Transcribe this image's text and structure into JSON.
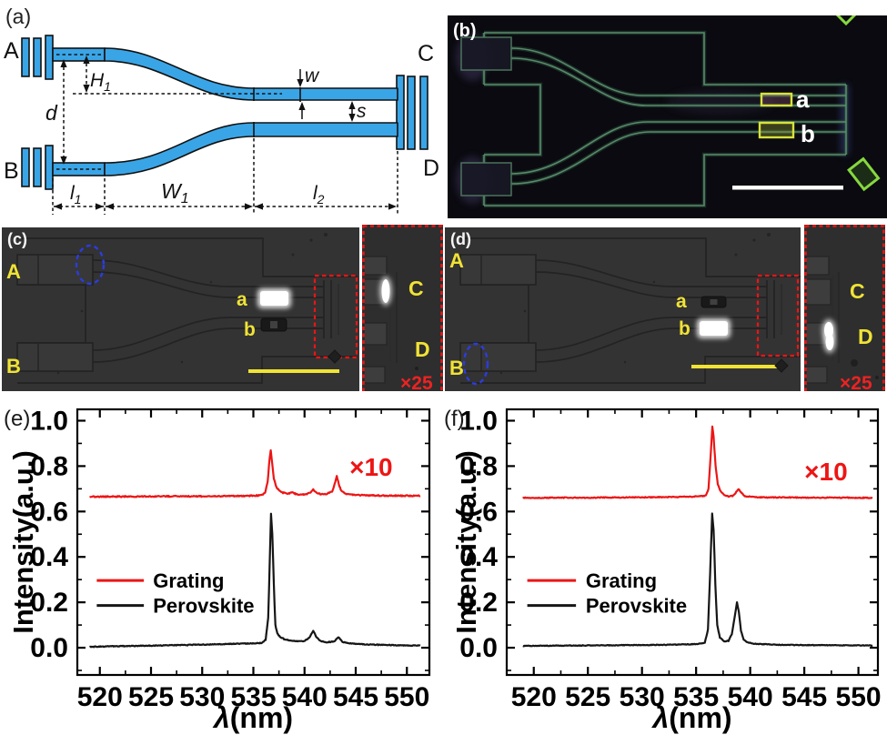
{
  "colors": {
    "waveguide_blue": "#3aa5e6",
    "label_yellow": "#f0e335",
    "annotation_red": "#ed1414",
    "ellipse_blue": "#2b3ce0",
    "fluorescence_green": "#5d8f6f",
    "grating_red": "#ed1515",
    "perovskite_black": "#161616"
  },
  "panels": {
    "a": {
      "label": "(a)",
      "ports": {
        "A": "A",
        "B": "B",
        "C": "C",
        "D": "D"
      },
      "dims": {
        "H1": {
          "base": "H",
          "sub": "1"
        },
        "d": "d",
        "w": "w",
        "s": "s",
        "l1": {
          "base": "l",
          "sub": "1"
        },
        "W1": {
          "base": "W",
          "sub": "1"
        },
        "l2": {
          "base": "l",
          "sub": "2"
        }
      }
    },
    "b": {
      "label": "(b)",
      "marker_a": "a",
      "marker_b": "b"
    },
    "c": {
      "label": "(c)",
      "port_a": "A",
      "port_b": "B",
      "marker_a": "a",
      "marker_b": "b",
      "inset": {
        "label_c": "C",
        "label_d": "D",
        "magnification": "×25"
      }
    },
    "d": {
      "label": "(d)",
      "port_a": "A",
      "port_b": "B",
      "marker_a": "a",
      "marker_b": "b",
      "inset": {
        "label_c": "C",
        "label_d": "D",
        "magnification": "×25"
      }
    }
  },
  "chart_data": [
    {
      "id": "e",
      "panel_label": "(e)",
      "type": "line",
      "xlabel_lambda": "λ",
      "xlabel_units": "(nm)",
      "ylabel": "Intensity(a.u.)",
      "xlim": [
        517.8,
        552.2
      ],
      "ylim": [
        -0.12,
        1.05
      ],
      "xticks": [
        520,
        525,
        530,
        535,
        540,
        545,
        550
      ],
      "yticks": [
        "0.0",
        "0.2",
        "0.4",
        "0.6",
        "0.8",
        "1.0"
      ],
      "x_minor_step": 2.5,
      "y_minor_step": 0.1,
      "annotation": {
        "text": "×10",
        "x": 546.5,
        "y": 0.758,
        "color": "#ed1515"
      },
      "legend_anchor": {
        "x0": 519.7,
        "x1": 524.3,
        "tx": 525.2,
        "y": [
          0.296,
          0.186
        ]
      },
      "series": [
        {
          "name": "Grating",
          "color": "#ed1515",
          "noise": 0.005,
          "points": [
            [
              519,
              0.665
            ],
            [
              521,
              0.666
            ],
            [
              524,
              0.666
            ],
            [
              527,
              0.667
            ],
            [
              530,
              0.667
            ],
            [
              532.5,
              0.668
            ],
            [
              534.5,
              0.669
            ],
            [
              535.8,
              0.671
            ],
            [
              536.15,
              0.682
            ],
            [
              536.4,
              0.73
            ],
            [
              536.6,
              0.84
            ],
            [
              536.7,
              0.868
            ],
            [
              536.8,
              0.83
            ],
            [
              537.0,
              0.745
            ],
            [
              537.25,
              0.707
            ],
            [
              537.5,
              0.693
            ],
            [
              537.9,
              0.683
            ],
            [
              538.4,
              0.678
            ],
            [
              538.8,
              0.684
            ],
            [
              539.2,
              0.676
            ],
            [
              540.0,
              0.675
            ],
            [
              540.5,
              0.681
            ],
            [
              540.85,
              0.697
            ],
            [
              541.2,
              0.683
            ],
            [
              541.6,
              0.676
            ],
            [
              542.2,
              0.678
            ],
            [
              542.7,
              0.688
            ],
            [
              543.0,
              0.73
            ],
            [
              543.15,
              0.757
            ],
            [
              543.35,
              0.72
            ],
            [
              543.6,
              0.69
            ],
            [
              544.0,
              0.678
            ],
            [
              544.8,
              0.673
            ],
            [
              546,
              0.671
            ],
            [
              548,
              0.67
            ],
            [
              551.3,
              0.669
            ]
          ]
        },
        {
          "name": "Perovskite",
          "color": "#161616",
          "noise": 0.0035,
          "points": [
            [
              519,
              0.004
            ],
            [
              521,
              0.006
            ],
            [
              523.5,
              0.008
            ],
            [
              526,
              0.01
            ],
            [
              528.5,
              0.012
            ],
            [
              531,
              0.015
            ],
            [
              533,
              0.017
            ],
            [
              534.8,
              0.019
            ],
            [
              535.8,
              0.021
            ],
            [
              536.2,
              0.035
            ],
            [
              536.45,
              0.13
            ],
            [
              536.6,
              0.38
            ],
            [
              536.72,
              0.59
            ],
            [
              536.85,
              0.5
            ],
            [
              537.0,
              0.28
            ],
            [
              537.15,
              0.1
            ],
            [
              537.35,
              0.062
            ],
            [
              537.6,
              0.048
            ],
            [
              538.0,
              0.038
            ],
            [
              538.5,
              0.032
            ],
            [
              539.2,
              0.028
            ],
            [
              540.0,
              0.03
            ],
            [
              540.5,
              0.045
            ],
            [
              540.85,
              0.076
            ],
            [
              541.15,
              0.048
            ],
            [
              541.5,
              0.03
            ],
            [
              542.2,
              0.024
            ],
            [
              542.9,
              0.028
            ],
            [
              543.3,
              0.047
            ],
            [
              543.7,
              0.026
            ],
            [
              544.3,
              0.02
            ],
            [
              545.5,
              0.016
            ],
            [
              547,
              0.013
            ],
            [
              549,
              0.011
            ],
            [
              551.3,
              0.009
            ]
          ]
        }
      ]
    },
    {
      "id": "f",
      "panel_label": "(f)",
      "type": "line",
      "xlabel_lambda": "λ",
      "xlabel_units": "(nm)",
      "ylabel": "Intensity(a.u.)",
      "xlim": [
        517.5,
        551.8
      ],
      "ylim": [
        -0.12,
        1.05
      ],
      "xticks": [
        520,
        525,
        530,
        535,
        540,
        545,
        550
      ],
      "yticks": [
        "0.0",
        "0.2",
        "0.4",
        "0.6",
        "0.8",
        "1.0"
      ],
      "x_minor_step": 2.5,
      "y_minor_step": 0.1,
      "annotation": {
        "text": "×10",
        "x": 547.0,
        "y": 0.737,
        "color": "#ed1515"
      },
      "legend_anchor": {
        "x0": 519.4,
        "x1": 523.9,
        "tx": 524.8,
        "y": [
          0.296,
          0.186
        ]
      },
      "series": [
        {
          "name": "Grating",
          "color": "#ed1515",
          "noise": 0.004,
          "points": [
            [
              519,
              0.66
            ],
            [
              522,
              0.661
            ],
            [
              525,
              0.661
            ],
            [
              528,
              0.662
            ],
            [
              531,
              0.663
            ],
            [
              533.5,
              0.664
            ],
            [
              535.2,
              0.666
            ],
            [
              535.9,
              0.67
            ],
            [
              536.15,
              0.7
            ],
            [
              536.35,
              0.85
            ],
            [
              536.5,
              0.975
            ],
            [
              536.62,
              0.93
            ],
            [
              536.8,
              0.8
            ],
            [
              537.0,
              0.72
            ],
            [
              537.25,
              0.69
            ],
            [
              537.55,
              0.674
            ],
            [
              538.0,
              0.667
            ],
            [
              538.35,
              0.668
            ],
            [
              538.65,
              0.682
            ],
            [
              538.9,
              0.7
            ],
            [
              539.15,
              0.684
            ],
            [
              539.5,
              0.668
            ],
            [
              540.2,
              0.664
            ],
            [
              541.5,
              0.662
            ],
            [
              543.5,
              0.662
            ],
            [
              546,
              0.661
            ],
            [
              549,
              0.661
            ],
            [
              551.3,
              0.66
            ]
          ]
        },
        {
          "name": "Perovskite",
          "color": "#161616",
          "noise": 0.003,
          "points": [
            [
              519,
              0.008
            ],
            [
              522,
              0.009
            ],
            [
              525,
              0.01
            ],
            [
              528,
              0.011
            ],
            [
              531,
              0.012
            ],
            [
              533.5,
              0.014
            ],
            [
              535.0,
              0.016
            ],
            [
              535.8,
              0.022
            ],
            [
              536.1,
              0.08
            ],
            [
              536.3,
              0.33
            ],
            [
              536.48,
              0.59
            ],
            [
              536.62,
              0.52
            ],
            [
              536.78,
              0.28
            ],
            [
              536.95,
              0.1
            ],
            [
              537.2,
              0.045
            ],
            [
              537.6,
              0.028
            ],
            [
              538.0,
              0.03
            ],
            [
              538.3,
              0.06
            ],
            [
              538.55,
              0.13
            ],
            [
              538.78,
              0.2
            ],
            [
              538.95,
              0.16
            ],
            [
              539.15,
              0.075
            ],
            [
              539.4,
              0.035
            ],
            [
              539.8,
              0.022
            ],
            [
              540.5,
              0.017
            ],
            [
              542,
              0.014
            ],
            [
              544,
              0.012
            ],
            [
              547,
              0.011
            ],
            [
              551.3,
              0.01
            ]
          ]
        }
      ]
    }
  ]
}
